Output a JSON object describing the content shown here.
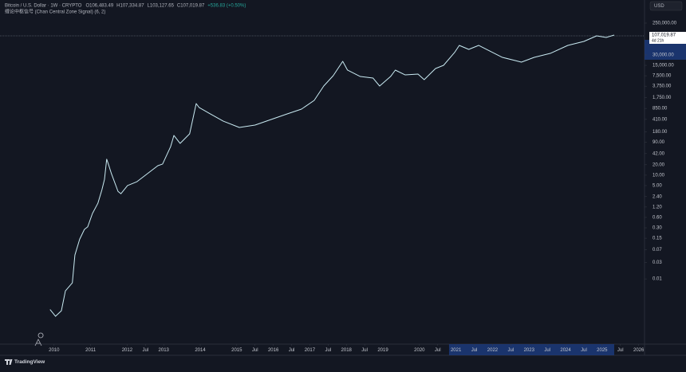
{
  "header": {
    "symbol": "Bitcoin / U.S. Dollar · 1W · CRYPTO",
    "open": "O106,483.49",
    "high": "H107,334.87",
    "low": "L103,127.65",
    "close": "C107,019.87",
    "change": "+536.83 (+0.50%)",
    "indicator": "缠论中枢信号 (Chan Central Zone Signal) (6, 2)",
    "currency": "USD",
    "brand": "TradingView"
  },
  "chart_data": {
    "type": "line",
    "log_scale": true,
    "xlim": [
      2008.52,
      2026.16
    ],
    "ylim": [
      0.00013,
      1164000
    ],
    "x": [
      2009.89,
      2010.04,
      2010.2,
      2010.31,
      2010.5,
      2010.57,
      2010.7,
      2010.83,
      2010.92,
      2011.05,
      2011.2,
      2011.31,
      2011.38,
      2011.44,
      2011.48,
      2011.57,
      2011.75,
      2011.83,
      2012.01,
      2012.27,
      2012.58,
      2012.84,
      2012.97,
      2013.19,
      2013.28,
      2013.45,
      2013.71,
      2013.89,
      2013.97,
      2014.24,
      2014.63,
      2015.07,
      2015.5,
      2015.94,
      2016.38,
      2016.77,
      2017.12,
      2017.38,
      2017.64,
      2017.9,
      2018.03,
      2018.38,
      2018.73,
      2018.91,
      2019.21,
      2019.34,
      2019.61,
      2019.96,
      2020.13,
      2020.44,
      2020.66,
      2020.96,
      2021.09,
      2021.35,
      2021.62,
      2021.92,
      2022.27,
      2022.62,
      2022.79,
      2023.14,
      2023.58,
      2024.06,
      2024.5,
      2024.85,
      2025.11,
      2025.33
    ],
    "series": [
      {
        "color": "#c9eaf2",
        "values": [
          0.0013,
          0.00083,
          0.0012,
          0.0045,
          0.0077,
          0.049,
          0.14,
          0.27,
          0.32,
          0.78,
          1.55,
          3.8,
          7.6,
          29,
          22,
          11,
          3.4,
          2.9,
          5.0,
          6.5,
          11.6,
          18.8,
          21,
          67,
          141,
          83,
          157,
          1178,
          904,
          622,
          366,
          240,
          281,
          407,
          590,
          813,
          1455,
          3784,
          7534,
          19590,
          10940,
          7145,
          6427,
          3784,
          7145,
          10940,
          7943,
          8375,
          5781,
          12160,
          15030,
          35160,
          56620,
          43450,
          56620,
          39080,
          25530,
          20650,
          18580,
          25530,
          33270,
          56620,
          73790,
          106900,
          96160,
          112700
        ]
      }
    ],
    "last_price": {
      "value": 107019.87,
      "label": "107,019.87"
    },
    "countdown": "4d 21h",
    "x_highlight": [
      2020.81,
      2025.33
    ],
    "y_highlight": [
      21800,
      82000
    ],
    "yticks": [
      {
        "value": 250000,
        "label": "250,000.00"
      },
      {
        "value": 30000,
        "label": "30,000.00"
      },
      {
        "value": 15000,
        "label": "15,000.00"
      },
      {
        "value": 7500,
        "label": "7,500.00"
      },
      {
        "value": 3750,
        "label": "3,750.00"
      },
      {
        "value": 1750,
        "label": "1,750.00"
      },
      {
        "value": 850,
        "label": "850.00"
      },
      {
        "value": 410,
        "label": "410.00"
      },
      {
        "value": 180,
        "label": "180.00"
      },
      {
        "value": 90,
        "label": "90.00"
      },
      {
        "value": 42,
        "label": "42.00"
      },
      {
        "value": 20,
        "label": "20.00"
      },
      {
        "value": 10,
        "label": "10.00"
      },
      {
        "value": 5,
        "label": "5.00"
      },
      {
        "value": 2.4,
        "label": "2.40"
      },
      {
        "value": 1.2,
        "label": "1.20"
      },
      {
        "value": 0.6,
        "label": "0.60"
      },
      {
        "value": 0.3,
        "label": "0.30"
      },
      {
        "value": 0.15,
        "label": "0.15"
      },
      {
        "value": 0.07,
        "label": "0.07"
      },
      {
        "value": 0.03,
        "label": "0.03"
      },
      {
        "value": 0.01,
        "label": "0.01"
      }
    ],
    "xticks": [
      {
        "value": 2010,
        "label": "2010"
      },
      {
        "value": 2011,
        "label": "2011"
      },
      {
        "value": 2012,
        "label": "2012"
      },
      {
        "value": 2012.5,
        "label": "Jul"
      },
      {
        "value": 2013,
        "label": "2013"
      },
      {
        "value": 2014,
        "label": "2014"
      },
      {
        "value": 2015,
        "label": "2015"
      },
      {
        "value": 2015.5,
        "label": "Jul"
      },
      {
        "value": 2016,
        "label": "2016"
      },
      {
        "value": 2016.5,
        "label": "Jul"
      },
      {
        "value": 2017,
        "label": "2017"
      },
      {
        "value": 2017.5,
        "label": "Jul"
      },
      {
        "value": 2018,
        "label": "2018"
      },
      {
        "value": 2018.5,
        "label": "Jul"
      },
      {
        "value": 2019,
        "label": "2019"
      },
      {
        "value": 2020,
        "label": "2020"
      },
      {
        "value": 2020.5,
        "label": "Jul"
      },
      {
        "value": 2021,
        "label": "2021"
      },
      {
        "value": 2021.5,
        "label": "Jul"
      },
      {
        "value": 2022,
        "label": "2022"
      },
      {
        "value": 2022.5,
        "label": "Jul"
      },
      {
        "value": 2023,
        "label": "2023"
      },
      {
        "value": 2023.5,
        "label": "Jul"
      },
      {
        "value": 2024,
        "label": "2024"
      },
      {
        "value": 2024.5,
        "label": "Jul"
      },
      {
        "value": 2025,
        "label": "2025"
      },
      {
        "value": 2025.5,
        "label": "Jul"
      },
      {
        "value": 2026,
        "label": "2026"
      }
    ]
  }
}
